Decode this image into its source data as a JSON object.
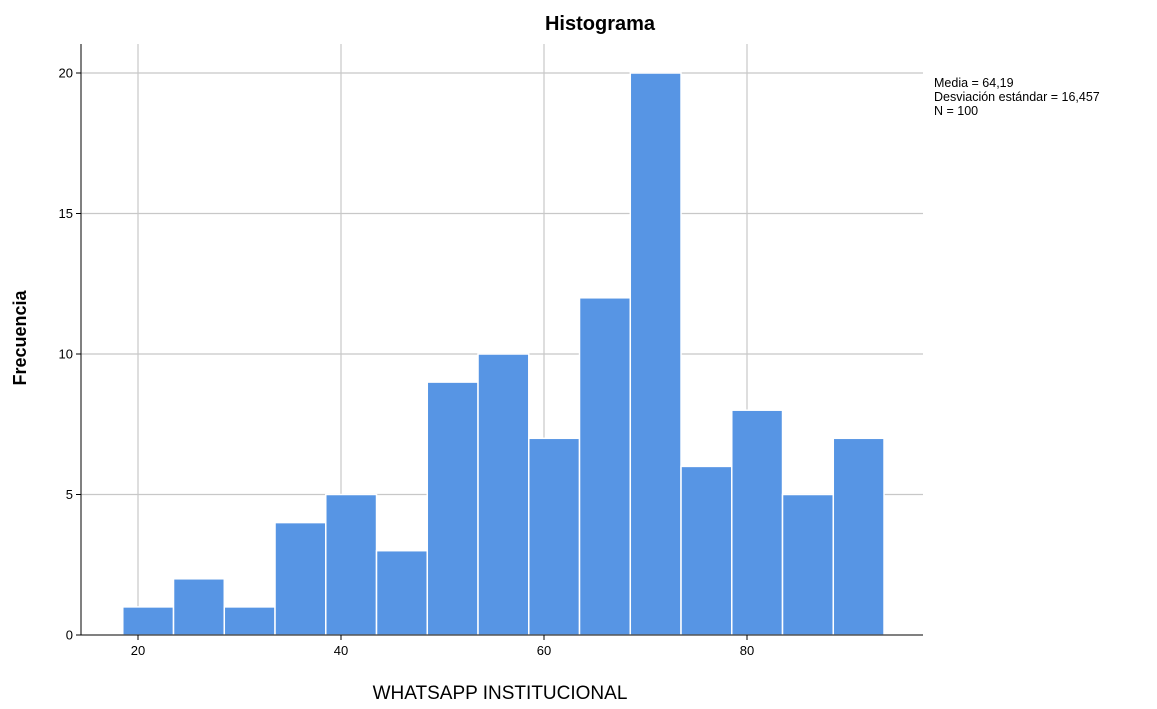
{
  "chart_data": {
    "type": "bar",
    "title": "Histograma",
    "xlabel": "WHATSAPP INSTITUCIONAL",
    "ylabel": "Frecuencia",
    "bin_width": 5,
    "bins": [
      {
        "start": 18.5,
        "end": 23.5,
        "count": 1
      },
      {
        "start": 23.5,
        "end": 28.5,
        "count": 2
      },
      {
        "start": 28.5,
        "end": 33.5,
        "count": 1
      },
      {
        "start": 33.5,
        "end": 38.5,
        "count": 4
      },
      {
        "start": 38.5,
        "end": 43.5,
        "count": 5
      },
      {
        "start": 43.5,
        "end": 48.5,
        "count": 3
      },
      {
        "start": 48.5,
        "end": 53.5,
        "count": 9
      },
      {
        "start": 53.5,
        "end": 58.5,
        "count": 10
      },
      {
        "start": 58.5,
        "end": 63.5,
        "count": 7
      },
      {
        "start": 63.5,
        "end": 68.5,
        "count": 12
      },
      {
        "start": 68.5,
        "end": 73.5,
        "count": 20
      },
      {
        "start": 73.5,
        "end": 78.5,
        "count": 6
      },
      {
        "start": 78.5,
        "end": 83.5,
        "count": 8
      },
      {
        "start": 83.5,
        "end": 88.5,
        "count": 5
      },
      {
        "start": 88.5,
        "end": 93.5,
        "count": 7
      }
    ],
    "xlim": [
      14.5,
      91.5
    ],
    "ylim": [
      0,
      21.1
    ],
    "x_ticks": [
      20,
      40,
      60,
      80
    ],
    "y_ticks": [
      0,
      5,
      10,
      15,
      20
    ],
    "grid": true,
    "bar_color": "#5795e4",
    "stats": {
      "mean_label": "Media = 64,19",
      "std_label": "Desviación estándar = 16,457",
      "n_label": "N = 100"
    },
    "stats_placement": "top-right"
  }
}
